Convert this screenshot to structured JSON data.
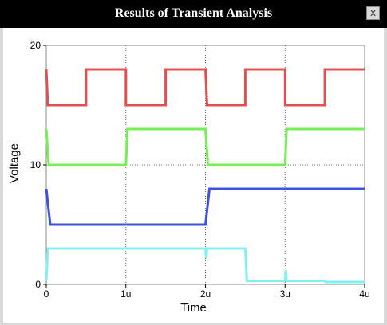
{
  "window": {
    "title": "Results of Transient Analysis",
    "close_label": "x"
  },
  "colors": {
    "red": "#e05050",
    "green": "#77ee55",
    "blue": "#4050e0",
    "cyan": "#80f0f0"
  },
  "chart_data": {
    "type": "line",
    "title": "",
    "xlabel": "Time",
    "ylabel": "Voltage",
    "xlim": [
      0,
      4
    ],
    "ylim": [
      0,
      20
    ],
    "x_ticks": [
      {
        "v": 0,
        "label": "0"
      },
      {
        "v": 1,
        "label": "1u"
      },
      {
        "v": 2,
        "label": "2u"
      },
      {
        "v": 3,
        "label": "3u"
      },
      {
        "v": 4,
        "label": "4u"
      }
    ],
    "y_ticks": [
      {
        "v": 0,
        "label": "0"
      },
      {
        "v": 10,
        "label": "10"
      },
      {
        "v": 20,
        "label": "20"
      }
    ],
    "grid": true,
    "series": [
      {
        "color": "#e05050",
        "points": [
          [
            0,
            18
          ],
          [
            0.02,
            15
          ],
          [
            0.5,
            15
          ],
          [
            0.5,
            18
          ],
          [
            1,
            18
          ],
          [
            1,
            15
          ],
          [
            1.5,
            15
          ],
          [
            1.5,
            18
          ],
          [
            2,
            18
          ],
          [
            2.02,
            15
          ],
          [
            2.5,
            15
          ],
          [
            2.5,
            18
          ],
          [
            3,
            18
          ],
          [
            3,
            15
          ],
          [
            3.5,
            15
          ],
          [
            3.5,
            18
          ],
          [
            4,
            18
          ]
        ]
      },
      {
        "color": "#77ee55",
        "points": [
          [
            0,
            13
          ],
          [
            0.03,
            10
          ],
          [
            1,
            10
          ],
          [
            1.02,
            13
          ],
          [
            2,
            13
          ],
          [
            2.03,
            10
          ],
          [
            3,
            10
          ],
          [
            3.02,
            13
          ],
          [
            4,
            13
          ]
        ]
      },
      {
        "color": "#4050e0",
        "points": [
          [
            0,
            8
          ],
          [
            0.05,
            5
          ],
          [
            2,
            5
          ],
          [
            2.05,
            8
          ],
          [
            4,
            8
          ]
        ]
      },
      {
        "color": "#80f0f0",
        "points": [
          [
            0,
            0.3
          ],
          [
            0.02,
            3
          ],
          [
            2,
            3
          ],
          [
            2.01,
            2.2
          ],
          [
            2.02,
            3
          ],
          [
            2.5,
            3
          ],
          [
            2.52,
            0.3
          ],
          [
            3,
            0.3
          ],
          [
            3.01,
            1.2
          ],
          [
            3.02,
            0.3
          ],
          [
            3.5,
            0.3
          ],
          [
            3.51,
            0.2
          ],
          [
            4,
            0.2
          ]
        ]
      }
    ]
  }
}
